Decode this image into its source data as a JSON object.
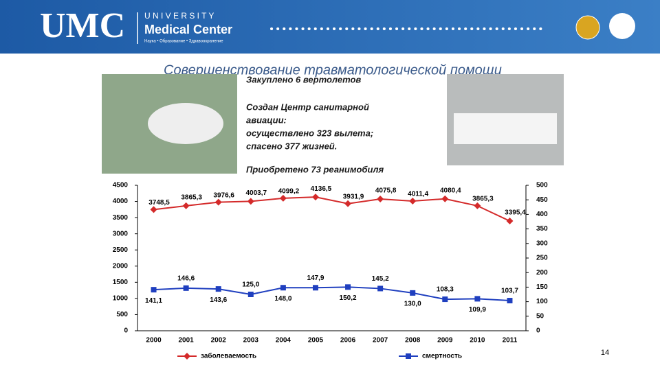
{
  "header": {
    "logo": "UMC",
    "university": "U N I V E R S I T Y",
    "center": "Medical Center",
    "tagline": "Наука • Образование • Здравоохранение"
  },
  "title": "Совершенствование травматологической помощи",
  "bullets": [
    "Закуплено 6 вертолетов",
    "Создан Центр санитарной",
    "авиации:",
    "осуществлено 323 вылета;",
    "спасено 377 жизней.",
    "Приобретено 73 реанимобиля"
  ],
  "page_number": "14",
  "chart_data": {
    "type": "line",
    "legend": "bottom",
    "categories": [
      "2000",
      "2001",
      "2002",
      "2003",
      "2004",
      "2005",
      "2006",
      "2007",
      "2008",
      "2009",
      "2010",
      "2011"
    ],
    "ylim": [
      0,
      4500
    ],
    "yticks": [
      0,
      500,
      1000,
      1500,
      2000,
      2500,
      3000,
      3500,
      4000,
      4500
    ],
    "y2lim": [
      0,
      500
    ],
    "y2ticks": [
      0,
      50,
      100,
      150,
      200,
      250,
      300,
      350,
      400,
      450,
      500
    ],
    "series": [
      {
        "name": "заболеваемость",
        "color": "#d42a2a",
        "marker": "diamond",
        "values": [
          3748.5,
          3865.3,
          3976.6,
          4003.7,
          4099.2,
          4136.5,
          3931.9,
          4075.8,
          4011.4,
          4080.4,
          3865.3,
          3395.4
        ],
        "value_labels": [
          "3748,5",
          "3865,3",
          "3976,6",
          "4003,7",
          "4099,2",
          "4136,5",
          "3931,9",
          "4075,8",
          "4011,4",
          "4080,4",
          "3865,3",
          "3395,4"
        ]
      },
      {
        "name": "смертность",
        "color": "#1f3fbf",
        "marker": "square",
        "axis": "y2",
        "values": [
          141.1,
          146.6,
          143.6,
          125.0,
          148.0,
          147.9,
          150.2,
          145.2,
          130.0,
          108.3,
          109.9,
          103.7
        ],
        "value_labels": [
          "141,1",
          "146,6",
          "143,6",
          "125,0",
          "148,0",
          "147,9",
          "150,2",
          "145,2",
          "130,0",
          "108,3",
          "109,9",
          "103,7"
        ]
      }
    ]
  }
}
